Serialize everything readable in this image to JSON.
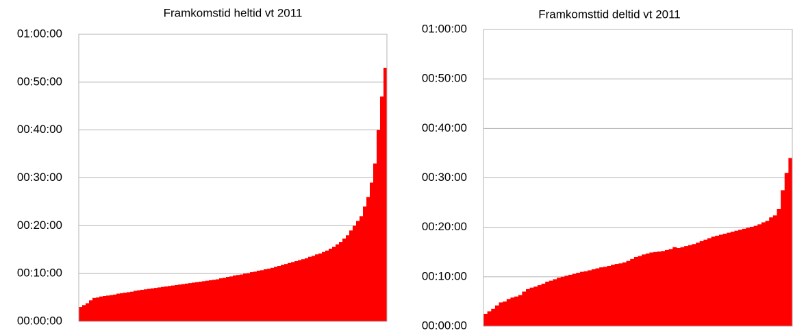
{
  "chart_data": [
    {
      "type": "bar",
      "title": "Framkomstid heltid vt 2011",
      "color": "#ff0000",
      "grid": true,
      "ylim": [
        0,
        60
      ],
      "yticks": [
        {
          "value": 0,
          "label": "00:00:00"
        },
        {
          "value": 10,
          "label": "00:10:00"
        },
        {
          "value": 20,
          "label": "00:20:00"
        },
        {
          "value": 30,
          "label": "00:30:00"
        },
        {
          "value": 40,
          "label": "00:40:00"
        },
        {
          "value": 50,
          "label": "00:50:00"
        },
        {
          "value": 60,
          "label": "01:00:00"
        }
      ],
      "values": [
        3.0,
        3.4,
        3.8,
        4.4,
        4.9,
        5.0,
        5.2,
        5.3,
        5.4,
        5.5,
        5.6,
        5.8,
        5.9,
        6.0,
        6.1,
        6.2,
        6.4,
        6.5,
        6.6,
        6.7,
        6.8,
        6.9,
        7.0,
        7.1,
        7.2,
        7.3,
        7.4,
        7.5,
        7.6,
        7.7,
        7.8,
        7.9,
        8.0,
        8.1,
        8.2,
        8.3,
        8.4,
        8.5,
        8.6,
        8.7,
        8.8,
        9.0,
        9.1,
        9.3,
        9.4,
        9.6,
        9.7,
        9.8,
        10.0,
        10.1,
        10.3,
        10.4,
        10.6,
        10.7,
        10.9,
        11.0,
        11.2,
        11.4,
        11.6,
        11.8,
        12.0,
        12.2,
        12.4,
        12.6,
        12.8,
        13.0,
        13.2,
        13.5,
        13.7,
        14.0,
        14.2,
        14.5,
        14.8,
        15.2,
        15.6,
        16.1,
        16.6,
        17.3,
        18.0,
        19.0,
        20.0,
        21.0,
        22.0,
        24.0,
        26.0,
        29.0,
        33.0,
        40.0,
        47.0,
        53.0
      ]
    },
    {
      "type": "bar",
      "title": "Framkomsttid deltid vt 2011",
      "color": "#ff0000",
      "grid": true,
      "ylim": [
        0,
        60
      ],
      "yticks": [
        {
          "value": 0,
          "label": "00:00:00"
        },
        {
          "value": 10,
          "label": "00:10:00"
        },
        {
          "value": 20,
          "label": "00:20:00"
        },
        {
          "value": 30,
          "label": "00:30:00"
        },
        {
          "value": 40,
          "label": "00:40:00"
        },
        {
          "value": 50,
          "label": "00:50:00"
        },
        {
          "value": 60,
          "label": "01:00:00"
        }
      ],
      "values": [
        2.5,
        3.0,
        3.5,
        4.2,
        4.8,
        5.0,
        5.5,
        5.8,
        6.0,
        6.3,
        7.0,
        7.5,
        7.8,
        8.0,
        8.3,
        8.6,
        9.0,
        9.2,
        9.5,
        9.8,
        10.0,
        10.2,
        10.4,
        10.6,
        10.8,
        11.0,
        11.1,
        11.3,
        11.5,
        11.7,
        11.9,
        12.0,
        12.2,
        12.4,
        12.6,
        12.7,
        12.9,
        13.2,
        13.6,
        14.0,
        14.2,
        14.5,
        14.7,
        14.9,
        15.0,
        15.1,
        15.2,
        15.4,
        15.6,
        16.0,
        15.8,
        16.0,
        16.2,
        16.4,
        16.6,
        16.9,
        17.2,
        17.5,
        17.8,
        18.1,
        18.3,
        18.5,
        18.7,
        18.9,
        19.1,
        19.3,
        19.5,
        19.7,
        19.9,
        20.1,
        20.3,
        20.6,
        21.0,
        21.3,
        22.0,
        22.4,
        23.7,
        27.5,
        31.0,
        34.0
      ]
    }
  ]
}
